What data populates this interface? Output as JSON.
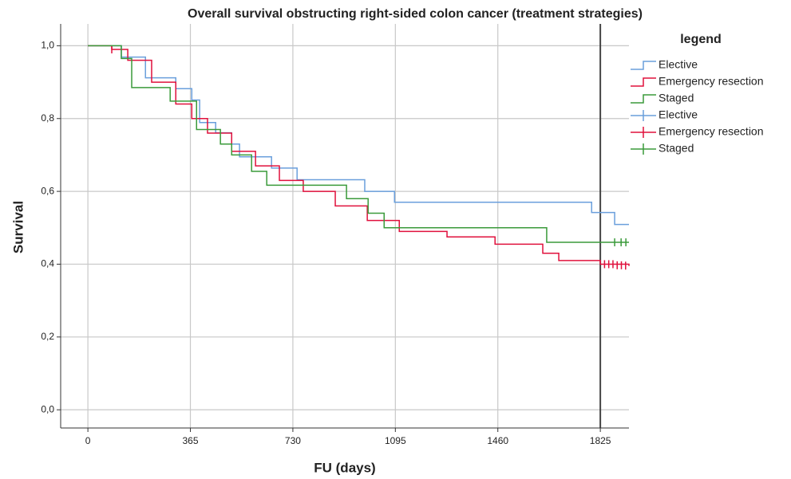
{
  "chart_data": {
    "type": "survival",
    "title": "Overall survival obstructing right-sided colon cancer (treatment strategies)",
    "x_label": "FU (days)",
    "y_label": "Survival",
    "legend_title": "legend",
    "xlim": [
      -97,
      1927
    ],
    "ylim": [
      -0.05,
      1.06
    ],
    "xticks": [
      0,
      365,
      730,
      1095,
      1460,
      1825
    ],
    "yticks": [
      {
        "value": 0,
        "label": "0,0"
      },
      {
        "value": 0.2,
        "label": "0,2"
      },
      {
        "value": 0.4,
        "label": "0,4"
      },
      {
        "value": 0.6,
        "label": "0,6"
      },
      {
        "value": 0.8,
        "label": "0,8"
      },
      {
        "value": 1.0,
        "label": "1,0"
      }
    ],
    "grid": true,
    "reference_x": 1825,
    "series": [
      {
        "name": "Elective",
        "color": "#6a9fdc",
        "x": [
          0,
          119,
          205,
          313,
          370,
          398,
          455,
          512,
          540,
          654,
          745,
          986,
          1092,
          1794,
          1876,
          1927
        ],
        "values": [
          1.0,
          0.969,
          0.912,
          0.882,
          0.851,
          0.789,
          0.761,
          0.73,
          0.695,
          0.664,
          0.632,
          0.6,
          0.57,
          0.542,
          0.509,
          0.509
        ],
        "censor_x": [],
        "censor_values": []
      },
      {
        "name": "Emergency resection",
        "color": "#e0103c",
        "x": [
          0,
          85,
          142,
          227,
          313,
          370,
          426,
          512,
          597,
          682,
          767,
          881,
          995,
          1109,
          1279,
          1450,
          1620,
          1677,
          1825,
          1927
        ],
        "values": [
          1.0,
          0.99,
          0.96,
          0.9,
          0.84,
          0.8,
          0.76,
          0.71,
          0.67,
          0.63,
          0.6,
          0.56,
          0.52,
          0.49,
          0.475,
          0.455,
          0.43,
          0.41,
          0.4,
          0.395
        ],
        "censor_x": [
          85,
          1840,
          1855,
          1870,
          1885,
          1900,
          1915
        ],
        "censor_values": [
          0.99,
          0.4,
          0.4,
          0.4,
          0.397,
          0.397,
          0.396
        ]
      },
      {
        "name": "Staged",
        "color": "#3a9a3a",
        "x": [
          0,
          119,
          156,
          293,
          387,
          472,
          512,
          583,
          637,
          921,
          998,
          1055,
          1634,
          1927
        ],
        "values": [
          1.0,
          0.965,
          0.885,
          0.848,
          0.77,
          0.73,
          0.7,
          0.655,
          0.617,
          0.58,
          0.54,
          0.5,
          0.46,
          0.46
        ],
        "censor_x": [
          1876,
          1899,
          1916
        ],
        "censor_values": [
          0.46,
          0.46,
          0.46
        ]
      }
    ]
  }
}
